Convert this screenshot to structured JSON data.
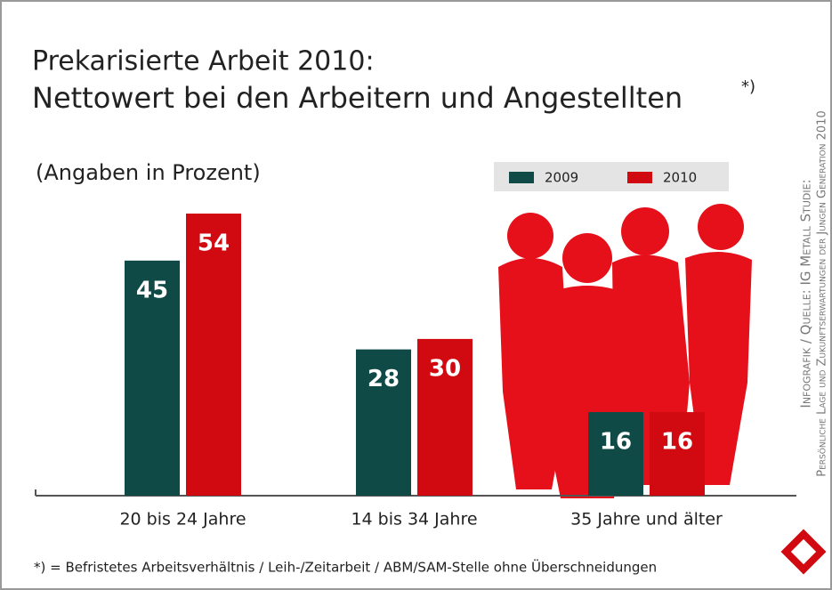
{
  "chart_data": {
    "type": "bar",
    "title": "Prekarisierte Arbeit 2010:",
    "subtitle": "Nettowert bei den Arbeitern und Angestellten",
    "title_note": "*)",
    "unit_note": "(Angaben in Prozent)",
    "categories": [
      "20 bis 24 Jahre",
      "14 bis 34 Jahre",
      "35 Jahre und älter"
    ],
    "series": [
      {
        "name": "2009",
        "color": "#0f4a46",
        "values": [
          45,
          28,
          16
        ]
      },
      {
        "name": "2010",
        "color": "#d10a11",
        "values": [
          54,
          30,
          16
        ]
      }
    ],
    "footnote": "*) = Befristetes Arbeitsverhältnis / Leih-/Zeitarbeit / ABM/SAM-Stelle ohne Überschneidungen",
    "source_line1": "Infografik / Quelle: IG Metall Studie:",
    "source_line2": "Persönliche Lage und Zukunftserwartungen der Jungen Generation 2010"
  }
}
